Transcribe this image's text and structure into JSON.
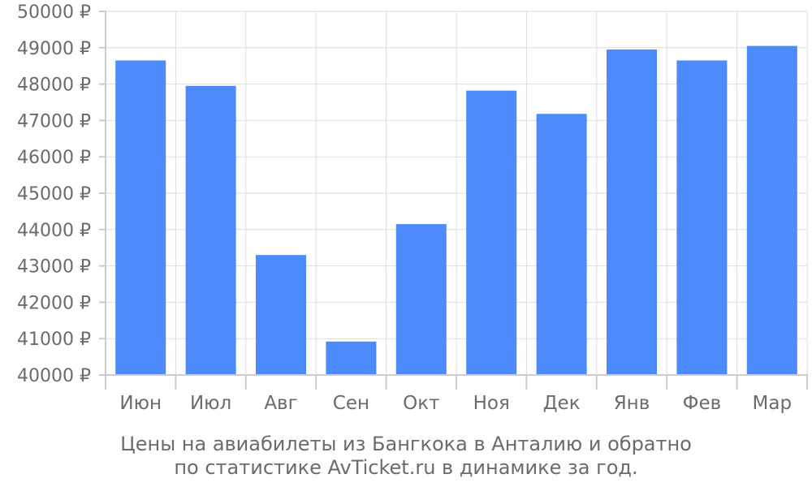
{
  "chart_data": {
    "type": "bar",
    "categories": [
      "Июн",
      "Июл",
      "Авг",
      "Сен",
      "Окт",
      "Ноя",
      "Дек",
      "Янв",
      "Фев",
      "Мар"
    ],
    "values": [
      48650,
      47950,
      43300,
      40920,
      44150,
      47820,
      47180,
      48950,
      48650,
      49050
    ],
    "ylim": [
      40000,
      50000
    ],
    "y_ticks": [
      "40000 ₽",
      "41000 ₽",
      "42000 ₽",
      "43000 ₽",
      "44000 ₽",
      "45000 ₽",
      "46000 ₽",
      "47000 ₽",
      "48000 ₽",
      "49000 ₽",
      "50000 ₽"
    ],
    "grid": true,
    "bar_color": "#4d8afb"
  },
  "caption": {
    "line1": "Цены на авиабилеты из Бангкока в Анталию и обратно",
    "line2": "по статистике AvTicket.ru в динамике за год."
  }
}
